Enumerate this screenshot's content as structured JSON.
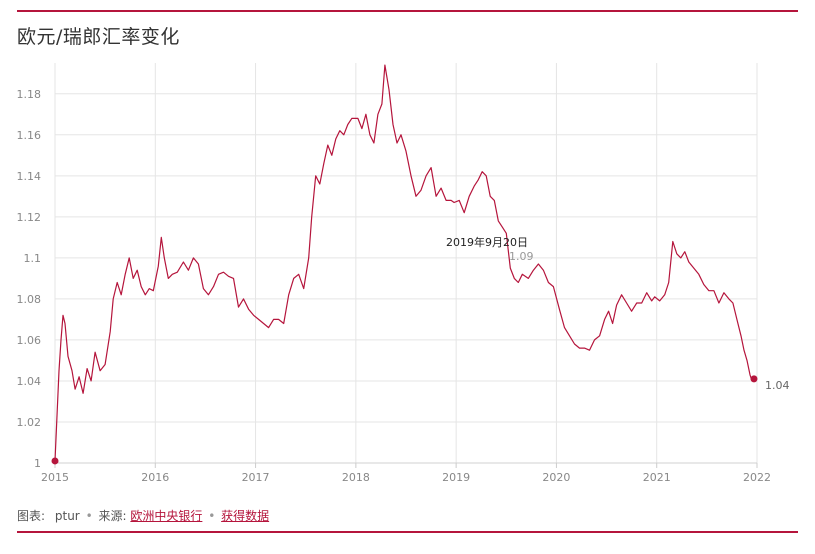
{
  "colors": {
    "accent": "#b5153c",
    "rule": "#b5153c",
    "grid": "#e5e5e5",
    "axis_text": "#888888"
  },
  "header": {
    "title": "欧元/瑞郎汇率变化"
  },
  "footer": {
    "chart_label": "图表:",
    "author": "ptur",
    "source_label": "来源:",
    "source_link": "欧洲中央银行",
    "data_link": "获得数据"
  },
  "chart_data": {
    "type": "line",
    "title": "欧元/瑞郎汇率变化",
    "xlabel": "",
    "ylabel": "",
    "xlim": [
      2015.0,
      2022.0
    ],
    "ylim": [
      1.0,
      1.195
    ],
    "x_ticks": [
      "2015",
      "2016",
      "2017",
      "2018",
      "2019",
      "2020",
      "2021",
      "2022"
    ],
    "y_ticks": [
      "1",
      "1.02",
      "1.04",
      "1.06",
      "1.08",
      "1.1",
      "1.12",
      "1.14",
      "1.16",
      "1.18"
    ],
    "grid": true,
    "annotations": [
      {
        "date": "2019年9月20日",
        "value": "1.09"
      },
      {
        "date": "",
        "value": "1.04"
      }
    ],
    "series": [
      {
        "color": "#b5153c",
        "points": [
          [
            2015.0,
            1.001
          ],
          [
            2015.04,
            1.045
          ],
          [
            2015.06,
            1.06
          ],
          [
            2015.08,
            1.072
          ],
          [
            2015.1,
            1.068
          ],
          [
            2015.13,
            1.052
          ],
          [
            2015.17,
            1.045
          ],
          [
            2015.2,
            1.036
          ],
          [
            2015.24,
            1.042
          ],
          [
            2015.28,
            1.034
          ],
          [
            2015.32,
            1.046
          ],
          [
            2015.36,
            1.04
          ],
          [
            2015.4,
            1.054
          ],
          [
            2015.45,
            1.045
          ],
          [
            2015.5,
            1.048
          ],
          [
            2015.55,
            1.064
          ],
          [
            2015.58,
            1.08
          ],
          [
            2015.62,
            1.088
          ],
          [
            2015.66,
            1.082
          ],
          [
            2015.7,
            1.092
          ],
          [
            2015.74,
            1.1
          ],
          [
            2015.78,
            1.09
          ],
          [
            2015.82,
            1.094
          ],
          [
            2015.86,
            1.086
          ],
          [
            2015.9,
            1.082
          ],
          [
            2015.94,
            1.085
          ],
          [
            2015.98,
            1.084
          ],
          [
            2016.03,
            1.096
          ],
          [
            2016.06,
            1.11
          ],
          [
            2016.09,
            1.1
          ],
          [
            2016.13,
            1.09
          ],
          [
            2016.17,
            1.092
          ],
          [
            2016.22,
            1.093
          ],
          [
            2016.28,
            1.098
          ],
          [
            2016.33,
            1.094
          ],
          [
            2016.38,
            1.1
          ],
          [
            2016.43,
            1.097
          ],
          [
            2016.48,
            1.085
          ],
          [
            2016.53,
            1.082
          ],
          [
            2016.58,
            1.086
          ],
          [
            2016.63,
            1.092
          ],
          [
            2016.68,
            1.093
          ],
          [
            2016.73,
            1.091
          ],
          [
            2016.78,
            1.09
          ],
          [
            2016.83,
            1.076
          ],
          [
            2016.88,
            1.08
          ],
          [
            2016.93,
            1.075
          ],
          [
            2016.98,
            1.072
          ],
          [
            2017.03,
            1.07
          ],
          [
            2017.08,
            1.068
          ],
          [
            2017.13,
            1.066
          ],
          [
            2017.18,
            1.07
          ],
          [
            2017.23,
            1.07
          ],
          [
            2017.28,
            1.068
          ],
          [
            2017.33,
            1.082
          ],
          [
            2017.38,
            1.09
          ],
          [
            2017.43,
            1.092
          ],
          [
            2017.48,
            1.085
          ],
          [
            2017.53,
            1.1
          ],
          [
            2017.56,
            1.12
          ],
          [
            2017.6,
            1.14
          ],
          [
            2017.64,
            1.136
          ],
          [
            2017.68,
            1.146
          ],
          [
            2017.72,
            1.155
          ],
          [
            2017.76,
            1.15
          ],
          [
            2017.8,
            1.158
          ],
          [
            2017.84,
            1.162
          ],
          [
            2017.88,
            1.16
          ],
          [
            2017.92,
            1.165
          ],
          [
            2017.96,
            1.168
          ],
          [
            2018.02,
            1.168
          ],
          [
            2018.06,
            1.163
          ],
          [
            2018.1,
            1.17
          ],
          [
            2018.14,
            1.16
          ],
          [
            2018.18,
            1.156
          ],
          [
            2018.22,
            1.17
          ],
          [
            2018.26,
            1.175
          ],
          [
            2018.29,
            1.194
          ],
          [
            2018.33,
            1.182
          ],
          [
            2018.37,
            1.165
          ],
          [
            2018.41,
            1.156
          ],
          [
            2018.45,
            1.16
          ],
          [
            2018.5,
            1.152
          ],
          [
            2018.55,
            1.14
          ],
          [
            2018.6,
            1.13
          ],
          [
            2018.65,
            1.133
          ],
          [
            2018.7,
            1.14
          ],
          [
            2018.75,
            1.144
          ],
          [
            2018.8,
            1.13
          ],
          [
            2018.85,
            1.134
          ],
          [
            2018.9,
            1.128
          ],
          [
            2018.95,
            1.128
          ],
          [
            2018.98,
            1.127
          ],
          [
            2019.03,
            1.128
          ],
          [
            2019.08,
            1.122
          ],
          [
            2019.13,
            1.13
          ],
          [
            2019.18,
            1.135
          ],
          [
            2019.22,
            1.138
          ],
          [
            2019.26,
            1.142
          ],
          [
            2019.3,
            1.14
          ],
          [
            2019.34,
            1.13
          ],
          [
            2019.38,
            1.128
          ],
          [
            2019.42,
            1.118
          ],
          [
            2019.46,
            1.115
          ],
          [
            2019.5,
            1.112
          ],
          [
            2019.54,
            1.095
          ],
          [
            2019.58,
            1.09
          ],
          [
            2019.62,
            1.088
          ],
          [
            2019.66,
            1.092
          ],
          [
            2019.72,
            1.09
          ],
          [
            2019.77,
            1.094
          ],
          [
            2019.82,
            1.097
          ],
          [
            2019.87,
            1.094
          ],
          [
            2019.92,
            1.088
          ],
          [
            2019.97,
            1.086
          ],
          [
            2020.03,
            1.075
          ],
          [
            2020.08,
            1.066
          ],
          [
            2020.13,
            1.062
          ],
          [
            2020.18,
            1.058
          ],
          [
            2020.23,
            1.056
          ],
          [
            2020.28,
            1.056
          ],
          [
            2020.33,
            1.055
          ],
          [
            2020.38,
            1.06
          ],
          [
            2020.43,
            1.062
          ],
          [
            2020.48,
            1.07
          ],
          [
            2020.52,
            1.074
          ],
          [
            2020.56,
            1.068
          ],
          [
            2020.6,
            1.077
          ],
          [
            2020.65,
            1.082
          ],
          [
            2020.7,
            1.078
          ],
          [
            2020.75,
            1.074
          ],
          [
            2020.8,
            1.078
          ],
          [
            2020.85,
            1.078
          ],
          [
            2020.9,
            1.083
          ],
          [
            2020.95,
            1.079
          ],
          [
            2020.98,
            1.081
          ],
          [
            2021.03,
            1.079
          ],
          [
            2021.08,
            1.082
          ],
          [
            2021.12,
            1.088
          ],
          [
            2021.16,
            1.108
          ],
          [
            2021.2,
            1.102
          ],
          [
            2021.24,
            1.1
          ],
          [
            2021.28,
            1.103
          ],
          [
            2021.32,
            1.098
          ],
          [
            2021.37,
            1.095
          ],
          [
            2021.42,
            1.092
          ],
          [
            2021.47,
            1.087
          ],
          [
            2021.52,
            1.084
          ],
          [
            2021.57,
            1.084
          ],
          [
            2021.62,
            1.078
          ],
          [
            2021.67,
            1.083
          ],
          [
            2021.72,
            1.08
          ],
          [
            2021.76,
            1.078
          ],
          [
            2021.8,
            1.07
          ],
          [
            2021.84,
            1.062
          ],
          [
            2021.87,
            1.055
          ],
          [
            2021.9,
            1.05
          ],
          [
            2021.93,
            1.043
          ],
          [
            2021.95,
            1.04
          ],
          [
            2021.97,
            1.041
          ]
        ]
      }
    ]
  }
}
